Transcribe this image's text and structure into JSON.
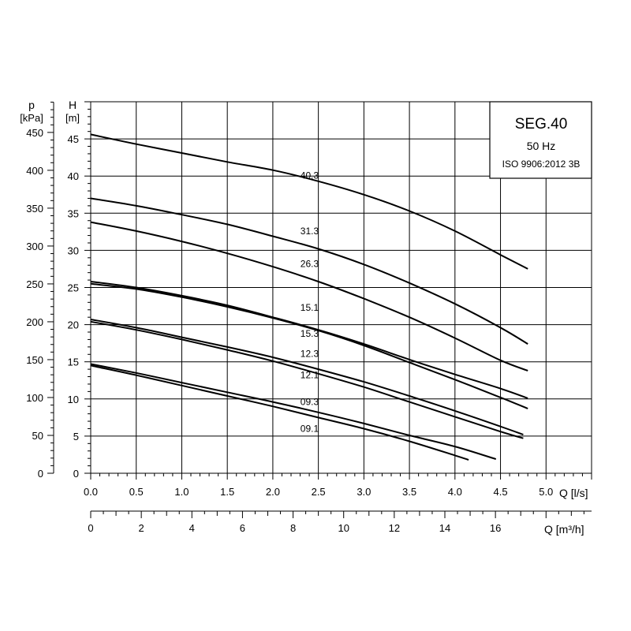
{
  "chart_data": {
    "type": "line",
    "title": "SEG.40",
    "subtitle_frequency": "50 Hz",
    "subtitle_standard": "ISO 9906:2012 3B",
    "xlabel": "Q [l/s]",
    "xlabel_secondary": "Q [m³/h]",
    "ylabel_left": "p\n[kPa]",
    "ylabel_left_line1": "p",
    "ylabel_left_line2": "[kPa]",
    "ylabel_right_line1": "H",
    "ylabel_right_line2": "[m]",
    "xlim": [
      0,
      5.5
    ],
    "ylim": [
      0,
      50
    ],
    "grid": true,
    "x_ticks": [
      "0.0",
      "0.5",
      "1.0",
      "1.5",
      "2.0",
      "2.5",
      "3.0",
      "3.5",
      "4.0",
      "4.5",
      "5.0"
    ],
    "x_tick_values": [
      0,
      0.5,
      1.0,
      1.5,
      2.0,
      2.5,
      3.0,
      3.5,
      4.0,
      4.5,
      5.0
    ],
    "x2_ticks": [
      "0",
      "2",
      "4",
      "6",
      "8",
      "10",
      "12",
      "14",
      "16"
    ],
    "x2_tick_values": [
      0,
      2,
      4,
      6,
      8,
      10,
      12,
      14,
      16
    ],
    "h_ticks": [
      "0",
      "5",
      "10",
      "15",
      "20",
      "25",
      "30",
      "35",
      "40",
      "45"
    ],
    "h_tick_values": [
      0,
      5,
      10,
      15,
      20,
      25,
      30,
      35,
      40,
      45
    ],
    "p_ticks": [
      "0",
      "50",
      "100",
      "150",
      "200",
      "250",
      "300",
      "350",
      "400",
      "450"
    ],
    "p_tick_values": [
      0,
      50,
      100,
      150,
      200,
      250,
      300,
      350,
      400,
      450
    ],
    "series": [
      {
        "name": "40.3",
        "label_at": [
          2.25,
          40.2
        ],
        "points": [
          [
            0,
            45.6
          ],
          [
            0.5,
            44.3
          ],
          [
            1.0,
            43.1
          ],
          [
            1.5,
            41.9
          ],
          [
            2.0,
            40.8
          ],
          [
            2.5,
            39.3
          ],
          [
            3.0,
            37.5
          ],
          [
            3.5,
            35.3
          ],
          [
            4.0,
            32.6
          ],
          [
            4.5,
            29.4
          ],
          [
            4.8,
            27.5
          ]
        ]
      },
      {
        "name": "31.3",
        "label_at": [
          2.25,
          32.7
        ],
        "points": [
          [
            0,
            37.0
          ],
          [
            0.5,
            36.0
          ],
          [
            1.0,
            34.8
          ],
          [
            1.5,
            33.5
          ],
          [
            2.0,
            31.9
          ],
          [
            2.5,
            30.2
          ],
          [
            3.0,
            28.1
          ],
          [
            3.5,
            25.6
          ],
          [
            4.0,
            22.8
          ],
          [
            4.5,
            19.6
          ],
          [
            4.8,
            17.4
          ]
        ]
      },
      {
        "name": "26.3",
        "label_at": [
          2.25,
          28.3
        ],
        "points": [
          [
            0,
            33.8
          ],
          [
            0.5,
            32.6
          ],
          [
            1.0,
            31.2
          ],
          [
            1.5,
            29.6
          ],
          [
            2.0,
            27.8
          ],
          [
            2.5,
            25.8
          ],
          [
            3.0,
            23.5
          ],
          [
            3.5,
            21.0
          ],
          [
            4.0,
            18.2
          ],
          [
            4.5,
            15.2
          ],
          [
            4.8,
            13.8
          ]
        ]
      },
      {
        "name": "15.1",
        "label_at": [
          2.25,
          22.4
        ],
        "points": [
          [
            0,
            25.8
          ],
          [
            0.5,
            25.0
          ],
          [
            1.0,
            23.9
          ],
          [
            1.5,
            22.6
          ],
          [
            2.0,
            21.0
          ],
          [
            2.5,
            19.3
          ],
          [
            3.0,
            17.4
          ],
          [
            3.5,
            15.3
          ],
          [
            4.0,
            13.3
          ],
          [
            4.5,
            11.4
          ],
          [
            4.8,
            10.1
          ]
        ]
      },
      {
        "name": "15.3",
        "label_at": [
          2.25,
          18.9
        ],
        "points": [
          [
            0,
            25.5
          ],
          [
            0.5,
            24.8
          ],
          [
            1.0,
            23.7
          ],
          [
            1.5,
            22.4
          ],
          [
            2.0,
            20.9
          ],
          [
            2.5,
            19.2
          ],
          [
            3.0,
            17.2
          ],
          [
            3.5,
            14.9
          ],
          [
            4.0,
            12.6
          ],
          [
            4.5,
            10.2
          ],
          [
            4.8,
            8.7
          ]
        ]
      },
      {
        "name": "12.3",
        "label_at": [
          2.25,
          16.2
        ],
        "points": [
          [
            0,
            20.7
          ],
          [
            0.5,
            19.6
          ],
          [
            1.0,
            18.3
          ],
          [
            1.5,
            17.0
          ],
          [
            2.0,
            15.6
          ],
          [
            2.5,
            14.0
          ],
          [
            3.0,
            12.3
          ],
          [
            3.5,
            10.4
          ],
          [
            4.0,
            8.4
          ],
          [
            4.5,
            6.3
          ],
          [
            4.75,
            5.2
          ]
        ]
      },
      {
        "name": "12.1",
        "label_at": [
          2.25,
          13.3
        ],
        "points": [
          [
            0,
            20.4
          ],
          [
            0.5,
            19.3
          ],
          [
            1.0,
            18.0
          ],
          [
            1.5,
            16.6
          ],
          [
            2.0,
            15.1
          ],
          [
            2.5,
            13.4
          ],
          [
            3.0,
            11.6
          ],
          [
            3.5,
            9.6
          ],
          [
            4.0,
            7.6
          ],
          [
            4.5,
            5.6
          ],
          [
            4.75,
            4.7
          ]
        ]
      },
      {
        "name": "09.3",
        "label_at": [
          2.25,
          9.7
        ],
        "points": [
          [
            0,
            14.7
          ],
          [
            0.5,
            13.5
          ],
          [
            1.0,
            12.2
          ],
          [
            1.5,
            10.9
          ],
          [
            2.0,
            9.6
          ],
          [
            2.5,
            8.2
          ],
          [
            3.0,
            6.7
          ],
          [
            3.5,
            5.1
          ],
          [
            4.0,
            3.6
          ],
          [
            4.45,
            1.9
          ]
        ]
      },
      {
        "name": "09.1",
        "label_at": [
          2.25,
          6.1
        ],
        "points": [
          [
            0,
            14.5
          ],
          [
            0.5,
            13.2
          ],
          [
            1.0,
            11.8
          ],
          [
            1.5,
            10.4
          ],
          [
            2.0,
            9.0
          ],
          [
            2.5,
            7.5
          ],
          [
            3.0,
            6.0
          ],
          [
            3.5,
            4.3
          ],
          [
            4.0,
            2.4
          ],
          [
            4.15,
            1.8
          ]
        ]
      }
    ]
  }
}
